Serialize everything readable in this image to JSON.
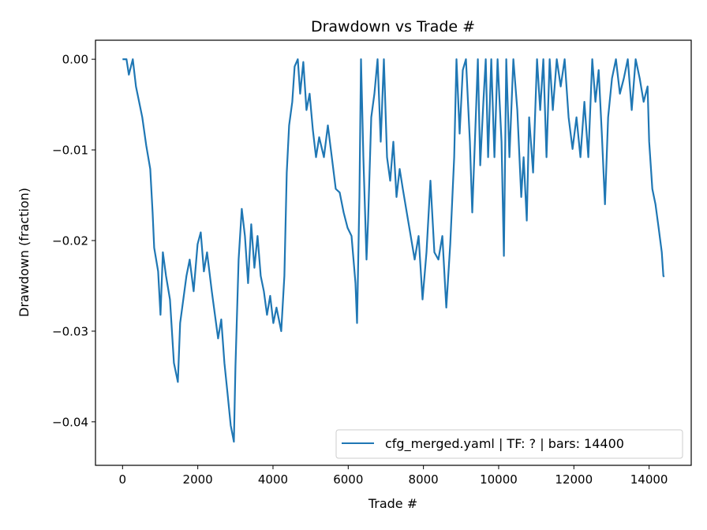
{
  "chart_data": {
    "type": "line",
    "title": "Drawdown vs Trade #",
    "xlabel": "Trade #",
    "ylabel": "Drawdown (fraction)",
    "xlim": [
      -720,
      15120
    ],
    "ylim": [
      -0.0448,
      0.0021
    ],
    "xticks": [
      0,
      2000,
      4000,
      6000,
      8000,
      10000,
      12000,
      14000
    ],
    "xtick_labels": [
      "0",
      "2000",
      "4000",
      "6000",
      "8000",
      "10000",
      "12000",
      "14000"
    ],
    "yticks": [
      0,
      -0.01,
      -0.02,
      -0.03,
      -0.04
    ],
    "ytick_labels": [
      "0.00",
      "−0.01",
      "−0.02",
      "−0.03",
      "−0.04"
    ],
    "grid": false,
    "legend_position": "lower-right",
    "series": [
      {
        "name": "cfg_merged.yaml | TF: ? | bars: 14400",
        "color": "#1f77b4",
        "x": [
          0,
          105,
          168,
          273,
          357,
          441,
          525,
          630,
          735,
          798,
          840,
          945,
          1008,
          1071,
          1155,
          1260,
          1365,
          1470,
          1532,
          1616,
          1700,
          1784,
          1889,
          1994,
          2078,
          2162,
          2246,
          2372,
          2456,
          2540,
          2624,
          2708,
          2792,
          2876,
          2960,
          3002,
          3086,
          3170,
          3254,
          3338,
          3422,
          3506,
          3590,
          3674,
          3758,
          3842,
          3926,
          4009,
          4093,
          4219,
          4303,
          4366,
          4429,
          4513,
          4576,
          4660,
          4723,
          4807,
          4891,
          4975,
          5059,
          5143,
          5227,
          5353,
          5458,
          5563,
          5668,
          5773,
          5878,
          5983,
          6088,
          6193,
          6234,
          6297,
          6339,
          6402,
          6486,
          6528,
          6612,
          6696,
          6780,
          6864,
          6948,
          7032,
          7116,
          7200,
          7284,
          7368,
          7452,
          7557,
          7662,
          7767,
          7872,
          7977,
          8082,
          8187,
          8292,
          8397,
          8502,
          8607,
          8712,
          8817,
          8879,
          8963,
          9047,
          9131,
          9236,
          9299,
          9383,
          9446,
          9509,
          9593,
          9656,
          9719,
          9803,
          9887,
          9971,
          10076,
          10139,
          10202,
          10286,
          10391,
          10496,
          10601,
          10664,
          10748,
          10811,
          10916,
          11021,
          11105,
          11189,
          11273,
          11357,
          11440,
          11545,
          11650,
          11755,
          11860,
          11965,
          12070,
          12175,
          12280,
          12385,
          12490,
          12574,
          12658,
          12742,
          12826,
          12910,
          13014,
          13119,
          13224,
          13329,
          13434,
          13539,
          13644,
          13749,
          13854,
          13959,
          14001,
          14085,
          14169,
          14253,
          14337,
          14379,
          14400
        ],
        "y": [
          0,
          0,
          -0.0017,
          0,
          -0.003,
          -0.0047,
          -0.0064,
          -0.0095,
          -0.0121,
          -0.0169,
          -0.0208,
          -0.0234,
          -0.0282,
          -0.0213,
          -0.0239,
          -0.0265,
          -0.0335,
          -0.0356,
          -0.0291,
          -0.0265,
          -0.0239,
          -0.0221,
          -0.0256,
          -0.0204,
          -0.0191,
          -0.0234,
          -0.0213,
          -0.0256,
          -0.0282,
          -0.0308,
          -0.0287,
          -0.0335,
          -0.0369,
          -0.0404,
          -0.0422,
          -0.0339,
          -0.0221,
          -0.0165,
          -0.0195,
          -0.0247,
          -0.0182,
          -0.023,
          -0.0195,
          -0.0239,
          -0.0256,
          -0.0282,
          -0.0261,
          -0.0291,
          -0.0274,
          -0.03,
          -0.0239,
          -0.0125,
          -0.0073,
          -0.0047,
          -0.0008,
          0,
          -0.0038,
          -0.0003,
          -0.0056,
          -0.0038,
          -0.0078,
          -0.0108,
          -0.0086,
          -0.0108,
          -0.0073,
          -0.0108,
          -0.0143,
          -0.0147,
          -0.0169,
          -0.0186,
          -0.0195,
          -0.0247,
          -0.0291,
          -0.0152,
          0,
          -0.0108,
          -0.0221,
          -0.0178,
          -0.0064,
          -0.0038,
          0,
          -0.0091,
          0,
          -0.0108,
          -0.0134,
          -0.0091,
          -0.0152,
          -0.0121,
          -0.0143,
          -0.0169,
          -0.0195,
          -0.0221,
          -0.0195,
          -0.0265,
          -0.0213,
          -0.0134,
          -0.0213,
          -0.0221,
          -0.0195,
          -0.0274,
          -0.0204,
          -0.0108,
          0,
          -0.0082,
          -0.0012,
          0,
          -0.0091,
          -0.0169,
          -0.0073,
          0,
          -0.0117,
          -0.0047,
          0,
          -0.0108,
          0,
          -0.0108,
          0,
          -0.0091,
          -0.0217,
          0,
          -0.0108,
          0,
          -0.0056,
          -0.0152,
          -0.0108,
          -0.0178,
          -0.0064,
          -0.0125,
          0,
          -0.0056,
          0,
          -0.0108,
          0,
          -0.0056,
          0,
          -0.003,
          0,
          -0.0064,
          -0.0099,
          -0.0064,
          -0.0108,
          -0.0047,
          -0.0108,
          0,
          -0.0047,
          -0.0012,
          -0.0082,
          -0.016,
          -0.0064,
          -0.0021,
          0,
          -0.0038,
          -0.0021,
          0,
          -0.0056,
          0,
          -0.0021,
          -0.0047,
          -0.003,
          -0.0091,
          -0.0143,
          -0.016,
          -0.0186,
          -0.0213,
          -0.0239,
          -0.024
        ]
      }
    ]
  }
}
